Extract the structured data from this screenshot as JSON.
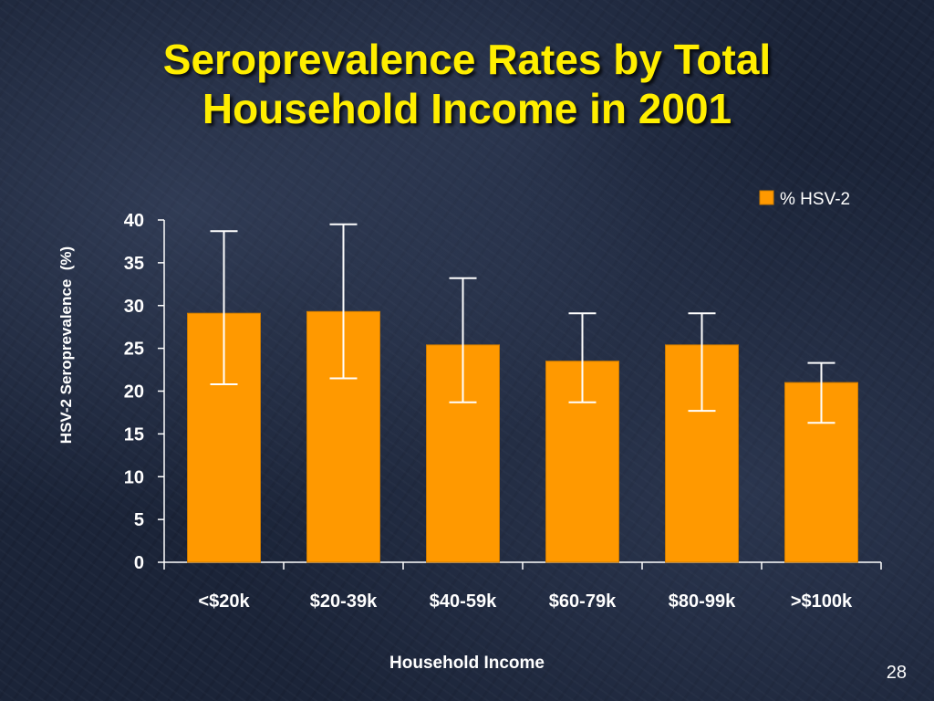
{
  "slide": {
    "title_line1": "Seroprevalence Rates by Total",
    "title_line2": "Household Income in 2001",
    "page_number": "28"
  },
  "colors": {
    "title": "#ffee00",
    "bar": "#ff9900",
    "text": "#ffffff",
    "background": "#1b2438"
  },
  "chart_data": {
    "type": "bar",
    "title": "",
    "xlabel": "Household Income",
    "ylabel": "HSV-2 Seroprevalence  (%)",
    "categories": [
      "<$20k",
      "$20-39k",
      "$40-59k",
      "$60-79k",
      "$80-99k",
      ">$100k"
    ],
    "series": [
      {
        "name": "% HSV-2",
        "values": [
          29.1,
          29.3,
          25.4,
          23.5,
          25.4,
          21.0
        ],
        "error_low": [
          20.8,
          21.5,
          18.7,
          18.7,
          17.7,
          16.3
        ],
        "error_high": [
          38.7,
          39.5,
          33.2,
          29.1,
          29.1,
          23.3
        ]
      }
    ],
    "ylim": [
      0,
      40
    ],
    "yticks": [
      0,
      5,
      10,
      15,
      20,
      25,
      30,
      35,
      40
    ],
    "grid": false,
    "legend_position": "top-right"
  }
}
